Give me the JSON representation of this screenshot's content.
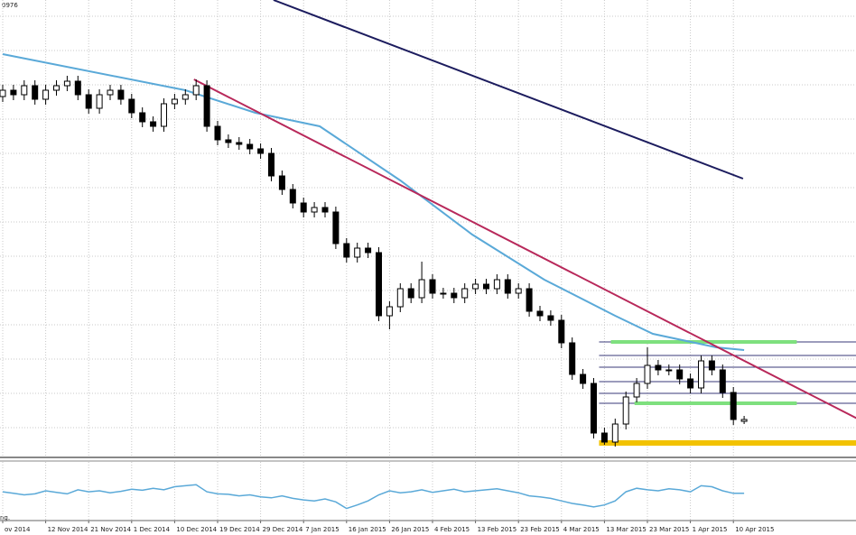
{
  "chart_data": {
    "type": "candlestick",
    "corner_label": "0976",
    "indicator_label": "ng.",
    "categories": [
      "ov 2014",
      null,
      null,
      null,
      "12 Nov 2014",
      null,
      null,
      null,
      "21 Nov 2014",
      null,
      null,
      null,
      "1 Dec 2014",
      null,
      null,
      null,
      "10 Dec 2014",
      null,
      null,
      null,
      "19 Dec 2014",
      null,
      null,
      null,
      "29 Dec 2014",
      null,
      null,
      null,
      "7 Jan 2015",
      null,
      null,
      null,
      "16 Jan 2015",
      null,
      null,
      null,
      "26 Jan 2015",
      null,
      null,
      null,
      "4 Feb 2015",
      null,
      null,
      null,
      "13 Feb 2015",
      null,
      null,
      null,
      "23 Feb 2015",
      null,
      null,
      null,
      "4 Mar 2015",
      null,
      null,
      null,
      "13 Mar 2015",
      null,
      null,
      null,
      "23 Mar 2015",
      null,
      null,
      null,
      "1 Apr 2015",
      null,
      null,
      null,
      "10 Apr 2015",
      null
    ],
    "open": [
      398,
      405,
      400,
      410,
      395,
      405,
      410,
      415,
      400,
      385,
      400,
      405,
      395,
      380,
      370,
      365,
      390,
      395,
      400,
      410,
      365,
      350,
      347,
      345,
      340,
      335,
      310,
      295,
      280,
      270,
      275,
      270,
      235,
      220,
      230,
      225,
      155,
      165,
      185,
      175,
      195,
      180,
      180,
      175,
      185,
      190,
      185,
      195,
      180,
      185,
      160,
      155,
      150,
      125,
      90,
      80,
      25,
      15,
      35,
      65,
      80,
      100,
      95,
      95,
      85,
      75,
      105,
      95,
      70,
      38
    ],
    "high": [
      411,
      411,
      416,
      416,
      411,
      416,
      421,
      421,
      406,
      406,
      411,
      411,
      401,
      386,
      376,
      396,
      401,
      406,
      417,
      416,
      371,
      356,
      353,
      351,
      346,
      341,
      316,
      301,
      286,
      281,
      281,
      276,
      241,
      236,
      236,
      231,
      171,
      191,
      191,
      215,
      201,
      186,
      186,
      191,
      196,
      196,
      201,
      201,
      191,
      191,
      166,
      161,
      156,
      131,
      96,
      86,
      31,
      41,
      71,
      86,
      120,
      106,
      101,
      101,
      91,
      111,
      111,
      101,
      76,
      44
    ],
    "low": [
      392,
      394,
      394,
      389,
      389,
      399,
      404,
      394,
      379,
      379,
      394,
      389,
      374,
      364,
      359,
      359,
      384,
      389,
      394,
      359,
      344,
      341,
      339,
      334,
      329,
      304,
      289,
      274,
      264,
      264,
      264,
      229,
      214,
      214,
      219,
      149,
      140,
      159,
      169,
      169,
      174,
      174,
      169,
      169,
      179,
      179,
      179,
      174,
      174,
      154,
      149,
      144,
      119,
      84,
      74,
      19,
      12,
      10,
      29,
      59,
      74,
      89,
      89,
      79,
      69,
      69,
      89,
      64,
      34,
      35
    ],
    "close": [
      405,
      400,
      410,
      395,
      405,
      410,
      415,
      400,
      385,
      400,
      405,
      395,
      380,
      370,
      365,
      390,
      395,
      400,
      410,
      365,
      350,
      347,
      345,
      340,
      335,
      310,
      295,
      280,
      270,
      275,
      270,
      235,
      220,
      230,
      225,
      155,
      165,
      185,
      175,
      195,
      180,
      180,
      175,
      185,
      190,
      185,
      195,
      180,
      185,
      160,
      155,
      150,
      125,
      90,
      80,
      25,
      15,
      35,
      65,
      80,
      100,
      95,
      95,
      85,
      75,
      105,
      95,
      70,
      40,
      40
    ],
    "ylim": [
      0,
      505
    ],
    "grid": true,
    "lines": [
      {
        "color": "#5aa9d8",
        "x": [
          0,
          17,
          23.5,
          29.5,
          37,
          43.7,
          50.4,
          57,
          60.5,
          66.4,
          69
        ],
        "values": [
          445,
          405,
          380,
          365,
          305,
          245,
          195,
          155,
          135,
          120,
          117
        ]
      },
      {
        "color": "#1c1c5e",
        "x": [
          25.2,
          68.9
        ],
        "values": [
          505,
          307
        ]
      },
      {
        "color": "#b8285a",
        "x": [
          17.8,
          79.7
        ],
        "values": [
          417,
          40
        ]
      }
    ],
    "levels": [
      {
        "color": "#3a3a7a",
        "value": 111,
        "from": 55.5,
        "to": 79.7
      },
      {
        "color": "#3a3a7a",
        "value": 98,
        "from": 55.5,
        "to": 79.7
      },
      {
        "color": "#3a3a7a",
        "value": 82,
        "from": 55.5,
        "to": 79.7
      },
      {
        "color": "#3a3a7a",
        "value": 69,
        "from": 55.5,
        "to": 79.7
      },
      {
        "color": "#3a3a7a",
        "value": 126,
        "from": 55.5,
        "to": 79.7
      },
      {
        "color": "#3a3a7a",
        "value": 58,
        "from": 55.5,
        "to": 79.7
      },
      {
        "color": "#7ee07e",
        "value": 126,
        "from": 56.6,
        "to": 73.9
      },
      {
        "color": "#7ee07e",
        "value": 58,
        "from": 58.8,
        "to": 73.9
      },
      {
        "color": "#f2c200",
        "value": 14,
        "from": 55.5,
        "to": 79.7
      }
    ],
    "indicator": {
      "type": "line",
      "color": "#5aa9d8",
      "ylim": [
        0,
        100
      ],
      "values": [
        48,
        45,
        42,
        44,
        50,
        47,
        44,
        52,
        48,
        50,
        46,
        49,
        53,
        51,
        55,
        52,
        58,
        60,
        62,
        48,
        44,
        43,
        40,
        42,
        38,
        36,
        40,
        35,
        32,
        30,
        34,
        28,
        15,
        22,
        30,
        42,
        50,
        46,
        48,
        52,
        47,
        50,
        53,
        48,
        50,
        52,
        54,
        50,
        46,
        40,
        38,
        35,
        30,
        25,
        22,
        18,
        22,
        30,
        48,
        55,
        52,
        50,
        54,
        52,
        48,
        60,
        58,
        50,
        45,
        45
      ]
    }
  }
}
